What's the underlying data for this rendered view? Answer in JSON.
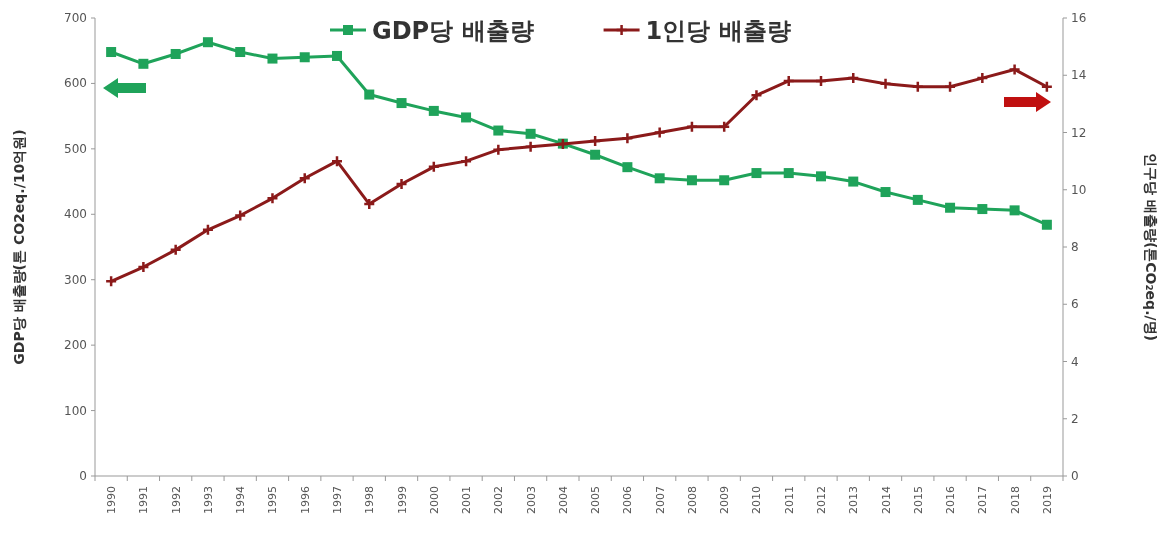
{
  "chart_data": {
    "type": "line",
    "ylabel": "GDP당 배출량(톤 CO2eq./10억원)",
    "y2label": "인구당 배출량(톤CO₂eq./명)",
    "categories": [
      "1990",
      "1991",
      "1992",
      "1993",
      "1994",
      "1995",
      "1996",
      "1997",
      "1998",
      "1999",
      "2000",
      "2001",
      "2002",
      "2003",
      "2004",
      "2005",
      "2006",
      "2007",
      "2008",
      "2009",
      "2010",
      "2011",
      "2012",
      "2013",
      "2014",
      "2015",
      "2016",
      "2017",
      "2018",
      "2019"
    ],
    "series": [
      {
        "name": "GDP당 배출량",
        "color": "#1fa35a",
        "marker": "square",
        "values": [
          648,
          630,
          645,
          663,
          648,
          638,
          640,
          642,
          583,
          570,
          558,
          548,
          528,
          523,
          508,
          491,
          472,
          455,
          452,
          452,
          463,
          463,
          458,
          450,
          434,
          422,
          410,
          408,
          406,
          384
        ]
      },
      {
        "name": "1인당 배출량",
        "color": "#8b1a1a",
        "marker": "cross",
        "axis": "y2",
        "values": [
          6.8,
          7.3,
          7.9,
          8.6,
          9.1,
          9.7,
          10.4,
          11.0,
          9.5,
          10.2,
          10.8,
          11.0,
          11.4,
          11.5,
          11.6,
          11.7,
          11.8,
          12.0,
          12.2,
          12.2,
          13.3,
          13.8,
          13.8,
          13.9,
          13.7,
          13.6,
          13.6,
          13.9,
          14.2,
          13.6
        ]
      }
    ],
    "ylim": [
      0,
      700
    ],
    "yticks": [
      0,
      100,
      200,
      300,
      400,
      500,
      600,
      700
    ],
    "y2lim": [
      0,
      16
    ],
    "y2ticks": [
      0,
      2,
      4,
      6,
      8,
      10,
      12,
      14,
      16
    ],
    "grid": false,
    "legend": "top",
    "line_style": "solid"
  }
}
